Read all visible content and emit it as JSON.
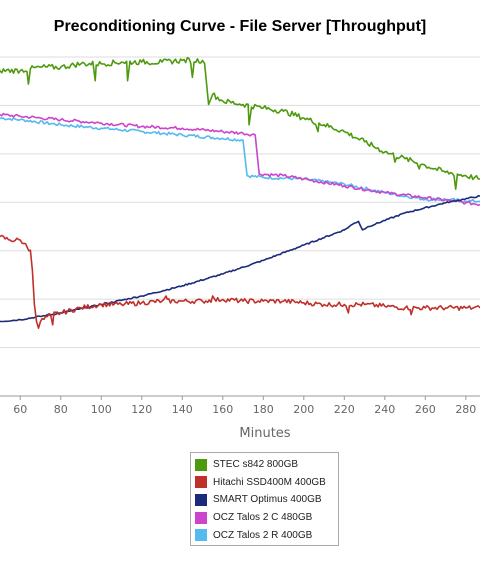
{
  "chart_data": {
    "type": "line",
    "title": "Preconditioning Curve - File Server [Throughput]",
    "xlabel": "Minutes",
    "x_ticks": [
      60,
      80,
      100,
      120,
      140,
      160,
      180,
      200,
      220,
      240,
      260,
      280
    ],
    "xlim": [
      50,
      287
    ],
    "ylim": [
      0,
      100
    ],
    "grid": true,
    "legend_position": "bottom",
    "series": [
      {
        "name": "STEC s842 800GB",
        "color": "#4d9a0e",
        "points": [
          [
            50,
            96
          ],
          [
            60,
            96
          ],
          [
            65,
            96.5
          ],
          [
            70,
            97
          ],
          [
            80,
            97
          ],
          [
            90,
            98
          ],
          [
            100,
            98
          ],
          [
            110,
            98.5
          ],
          [
            120,
            98.5
          ],
          [
            130,
            98.5
          ],
          [
            140,
            99
          ],
          [
            150,
            99
          ],
          [
            152,
            98
          ],
          [
            155,
            89
          ],
          [
            160,
            87
          ],
          [
            170,
            86
          ],
          [
            180,
            85
          ],
          [
            190,
            84
          ],
          [
            200,
            82
          ],
          [
            210,
            80
          ],
          [
            220,
            78
          ],
          [
            230,
            75
          ],
          [
            240,
            72
          ],
          [
            250,
            70
          ],
          [
            260,
            68
          ],
          [
            270,
            66
          ],
          [
            280,
            65
          ],
          [
            287,
            64
          ]
        ],
        "dips": [
          [
            64,
            92
          ],
          [
            97,
            93
          ],
          [
            113,
            93
          ],
          [
            145,
            94
          ],
          [
            153,
            86
          ],
          [
            173,
            80
          ],
          [
            207,
            78
          ],
          [
            245,
            69
          ],
          [
            257,
            67
          ],
          [
            275,
            61
          ]
        ]
      },
      {
        "name": "Hitachi SSD400M 400GB",
        "color": "#c0302a",
        "points": [
          [
            50,
            47
          ],
          [
            55,
            46
          ],
          [
            60,
            46
          ],
          [
            62,
            45
          ],
          [
            65,
            43
          ],
          [
            66,
            37
          ],
          [
            67,
            27
          ],
          [
            68,
            22
          ],
          [
            70,
            22
          ],
          [
            75,
            24
          ],
          [
            80,
            24.5
          ],
          [
            90,
            26
          ],
          [
            100,
            27
          ],
          [
            110,
            27
          ],
          [
            120,
            27.5
          ],
          [
            130,
            28
          ],
          [
            140,
            28
          ],
          [
            150,
            28
          ],
          [
            160,
            28.5
          ],
          [
            170,
            28
          ],
          [
            180,
            28
          ],
          [
            190,
            28
          ],
          [
            200,
            27.5
          ],
          [
            210,
            27
          ],
          [
            220,
            27
          ],
          [
            230,
            27
          ],
          [
            240,
            26.5
          ],
          [
            250,
            26
          ],
          [
            260,
            26
          ],
          [
            270,
            26
          ],
          [
            280,
            26
          ],
          [
            287,
            26
          ]
        ],
        "dips": [
          [
            69,
            20
          ],
          [
            76,
            21
          ],
          [
            132,
            29.5
          ],
          [
            155,
            29.5
          ],
          [
            199,
            27.5
          ],
          [
            222,
            24.5
          ],
          [
            253,
            24
          ]
        ]
      },
      {
        "name": "SMART Optimus 400GB",
        "color": "#1b2b7a",
        "points": [
          [
            50,
            22
          ],
          [
            60,
            22.5
          ],
          [
            80,
            24.5
          ],
          [
            100,
            27
          ],
          [
            120,
            29.5
          ],
          [
            140,
            32.5
          ],
          [
            160,
            36
          ],
          [
            180,
            40
          ],
          [
            200,
            44.5
          ],
          [
            220,
            49
          ],
          [
            225,
            51
          ],
          [
            227,
            51.5
          ],
          [
            229,
            49
          ],
          [
            232,
            50
          ],
          [
            250,
            54
          ],
          [
            270,
            57
          ],
          [
            287,
            59
          ]
        ],
        "dips": []
      },
      {
        "name": "OCZ Talos 2 C 480GB",
        "color": "#cc44cc",
        "points": [
          [
            50,
            83
          ],
          [
            60,
            82.5
          ],
          [
            70,
            82
          ],
          [
            80,
            81.5
          ],
          [
            100,
            80.5
          ],
          [
            120,
            79.5
          ],
          [
            140,
            79
          ],
          [
            160,
            78
          ],
          [
            170,
            77.5
          ],
          [
            176,
            77
          ],
          [
            178,
            65.5
          ],
          [
            190,
            65
          ],
          [
            200,
            64
          ],
          [
            220,
            62
          ],
          [
            240,
            60
          ],
          [
            260,
            58.5
          ],
          [
            280,
            57
          ],
          [
            287,
            56.5
          ]
        ],
        "dips": []
      },
      {
        "name": "OCZ Talos 2 R 400GB",
        "color": "#55bbee",
        "points": [
          [
            50,
            82
          ],
          [
            60,
            81.5
          ],
          [
            80,
            80
          ],
          [
            100,
            79
          ],
          [
            120,
            78
          ],
          [
            140,
            77
          ],
          [
            160,
            76
          ],
          [
            170,
            75.5
          ],
          [
            172,
            65
          ],
          [
            180,
            64.5
          ],
          [
            200,
            64
          ],
          [
            220,
            62.5
          ],
          [
            240,
            60
          ],
          [
            260,
            58
          ],
          [
            270,
            58
          ],
          [
            280,
            57.5
          ],
          [
            287,
            57.5
          ]
        ],
        "dips": []
      }
    ]
  }
}
